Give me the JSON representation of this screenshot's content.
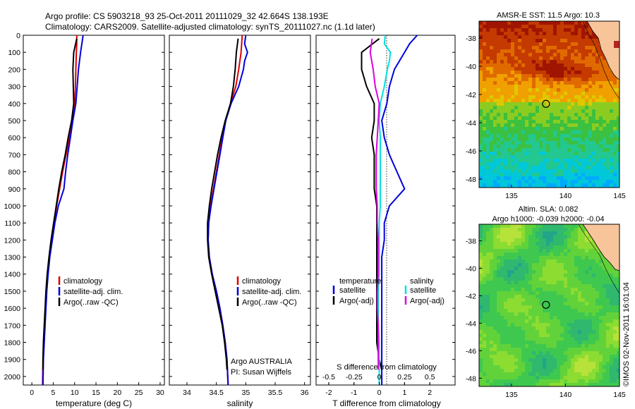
{
  "header": {
    "line1": "Argo profile: CS 5903218_93 25-Oct-2011 20111029_32 42.664S 138.193E",
    "line2": "Climatology: CARS2009. Satellite-adjusted climatology: synTS_20111027.nc (1.1d later)"
  },
  "colors": {
    "climatology": "#e00000",
    "satellite": "#0000dd",
    "argo": "#000000",
    "salinity_satellite": "#00e0e0",
    "salinity_argo": "#e000e0"
  },
  "panel_temperature": {
    "xlabel": "temperature (deg C)",
    "legend": [
      "climatology",
      "satellite-adj. clim.",
      "Argo(..raw -QC)"
    ]
  },
  "panel_salinity": {
    "xlabel": "salinity",
    "legend": [
      "climatology",
      "satellite-adj. clim.",
      "Argo(..raw -QC)"
    ],
    "note1": "Argo AUSTRALIA",
    "note2": "PI: Susan Wijffels"
  },
  "panel_difference": {
    "xlabel": "T difference from climatology",
    "top_label": "S difference from climatology",
    "legend_col1_title": "temperature",
    "legend_col2_title": "salinity",
    "legend_col1": [
      "satellite",
      "Argo(-adj)"
    ],
    "legend_col2": [
      "satellite",
      "Argo(-adj)"
    ]
  },
  "map_sst": {
    "title": "AMSR-E SST: 11.5 Argo: 10.3"
  },
  "map_sla": {
    "title1": "Altim. SLA: 0.082",
    "title2": "Argo h1000: -0.039 h2000: -0.04"
  },
  "credit": "©IMOS 02-Nov-2011 16:01:04",
  "chart_data": [
    {
      "type": "line",
      "name": "temperature",
      "xlabel": "temperature (deg C)",
      "ylabel": "",
      "xlim": [
        -2,
        31
      ],
      "ylim": [
        2050,
        0
      ],
      "xticks": [
        0,
        5,
        10,
        15,
        20,
        25,
        30
      ],
      "yticks": [
        0,
        100,
        200,
        300,
        400,
        500,
        600,
        700,
        800,
        900,
        1000,
        1100,
        1200,
        1300,
        1400,
        1500,
        1600,
        1700,
        1800,
        1900,
        2000
      ],
      "legend_position": "lower-center",
      "series": [
        {
          "name": "climatology",
          "color": "#e00000",
          "points": [
            [
              10.5,
              0
            ],
            [
              10.5,
              50
            ],
            [
              10.4,
              100
            ],
            [
              10.3,
              200
            ],
            [
              10.2,
              300
            ],
            [
              10.0,
              400
            ],
            [
              9.5,
              500
            ],
            [
              8.8,
              600
            ],
            [
              8.0,
              700
            ],
            [
              7.2,
              800
            ],
            [
              6.5,
              900
            ],
            [
              5.8,
              1000
            ],
            [
              5.2,
              1100
            ],
            [
              4.6,
              1200
            ],
            [
              4.1,
              1300
            ],
            [
              3.7,
              1400
            ],
            [
              3.4,
              1500
            ],
            [
              3.2,
              1600
            ],
            [
              3.0,
              1700
            ],
            [
              2.8,
              1800
            ],
            [
              2.6,
              1900
            ],
            [
              2.5,
              2050
            ]
          ]
        },
        {
          "name": "satellite-adj. clim.",
          "color": "#0000dd",
          "points": [
            [
              12.0,
              0
            ],
            [
              11.7,
              50
            ],
            [
              11.4,
              100
            ],
            [
              10.9,
              200
            ],
            [
              10.6,
              300
            ],
            [
              10.3,
              400
            ],
            [
              9.6,
              500
            ],
            [
              9.0,
              600
            ],
            [
              8.4,
              700
            ],
            [
              7.9,
              800
            ],
            [
              7.5,
              900
            ],
            [
              6.2,
              1000
            ],
            [
              5.4,
              1100
            ],
            [
              4.8,
              1200
            ],
            [
              4.2,
              1300
            ],
            [
              3.8,
              1400
            ],
            [
              3.5,
              1500
            ],
            [
              3.3,
              1600
            ],
            [
              3.1,
              1700
            ],
            [
              2.9,
              1800
            ],
            [
              2.7,
              1900
            ],
            [
              2.6,
              2050
            ]
          ]
        },
        {
          "name": "Argo(..raw -QC)",
          "color": "#000000",
          "points": [
            [
              10.5,
              20
            ],
            [
              9.8,
              100
            ],
            [
              9.6,
              200
            ],
            [
              9.7,
              300
            ],
            [
              9.8,
              400
            ],
            [
              9.3,
              500
            ],
            [
              8.5,
              600
            ],
            [
              7.8,
              700
            ],
            [
              7.0,
              800
            ],
            [
              6.3,
              900
            ],
            [
              5.7,
              1000
            ],
            [
              5.1,
              1100
            ],
            [
              4.5,
              1200
            ],
            [
              4.0,
              1300
            ],
            [
              3.6,
              1400
            ],
            [
              3.3,
              1500
            ],
            [
              3.1,
              1600
            ],
            [
              2.9,
              1700
            ],
            [
              2.7,
              1800
            ],
            [
              2.6,
              1900
            ],
            [
              2.6,
              1960
            ]
          ]
        }
      ]
    },
    {
      "type": "line",
      "name": "salinity",
      "xlabel": "salinity",
      "ylabel": "",
      "xlim": [
        33.7,
        36.1
      ],
      "ylim": [
        2050,
        0
      ],
      "xticks": [
        34,
        34.5,
        35,
        35.5,
        36
      ],
      "legend_position": "lower-right",
      "series": [
        {
          "name": "climatology",
          "color": "#e00000",
          "points": [
            [
              34.94,
              0
            ],
            [
              34.93,
              50
            ],
            [
              34.92,
              100
            ],
            [
              34.88,
              200
            ],
            [
              34.83,
              300
            ],
            [
              34.74,
              400
            ],
            [
              34.66,
              500
            ],
            [
              34.6,
              600
            ],
            [
              34.55,
              700
            ],
            [
              34.5,
              800
            ],
            [
              34.45,
              900
            ],
            [
              34.4,
              1000
            ],
            [
              34.37,
              1100
            ],
            [
              34.36,
              1200
            ],
            [
              34.38,
              1300
            ],
            [
              34.43,
              1400
            ],
            [
              34.5,
              1500
            ],
            [
              34.56,
              1600
            ],
            [
              34.61,
              1700
            ],
            [
              34.65,
              1800
            ],
            [
              34.68,
              1900
            ],
            [
              34.7,
              2050
            ]
          ]
        },
        {
          "name": "satellite-adj. clim.",
          "color": "#0000dd",
          "points": [
            [
              35.0,
              0
            ],
            [
              34.98,
              50
            ],
            [
              35.03,
              100
            ],
            [
              34.98,
              150
            ],
            [
              34.96,
              200
            ],
            [
              34.88,
              300
            ],
            [
              34.75,
              400
            ],
            [
              34.66,
              500
            ],
            [
              34.61,
              600
            ],
            [
              34.56,
              700
            ],
            [
              34.51,
              800
            ],
            [
              34.46,
              900
            ],
            [
              34.41,
              1000
            ],
            [
              34.37,
              1100
            ],
            [
              34.36,
              1200
            ],
            [
              34.38,
              1300
            ],
            [
              34.43,
              1400
            ],
            [
              34.5,
              1500
            ],
            [
              34.56,
              1600
            ],
            [
              34.61,
              1700
            ],
            [
              34.65,
              1800
            ],
            [
              34.68,
              1900
            ],
            [
              34.7,
              2050
            ]
          ]
        },
        {
          "name": "Argo(..raw -QC)",
          "color": "#000000",
          "points": [
            [
              34.87,
              20
            ],
            [
              34.84,
              100
            ],
            [
              34.82,
              200
            ],
            [
              34.79,
              300
            ],
            [
              34.74,
              400
            ],
            [
              34.65,
              500
            ],
            [
              34.58,
              600
            ],
            [
              34.52,
              700
            ],
            [
              34.47,
              800
            ],
            [
              34.42,
              900
            ],
            [
              34.38,
              1000
            ],
            [
              34.35,
              1100
            ],
            [
              34.35,
              1200
            ],
            [
              34.37,
              1300
            ],
            [
              34.42,
              1400
            ],
            [
              34.48,
              1500
            ],
            [
              34.54,
              1600
            ],
            [
              34.6,
              1700
            ],
            [
              34.64,
              1800
            ],
            [
              34.67,
              1900
            ],
            [
              34.68,
              1960
            ]
          ]
        }
      ]
    },
    {
      "type": "line",
      "name": "difference",
      "xlabel": "T difference from climatology",
      "x2label": "S difference from climatology",
      "xlim": [
        -2.5,
        3.0
      ],
      "x2lim": [
        -0.625,
        0.75
      ],
      "ylim": [
        2050,
        0
      ],
      "xticks": [
        -2,
        -1,
        0,
        1,
        2
      ],
      "x2ticks": [
        -0.5,
        -0.25,
        0,
        0.25,
        0.5
      ],
      "legend_position": "lower-center",
      "series": [
        {
          "name": "temperature satellite",
          "color": "#0000dd",
          "points": [
            [
              1.5,
              0
            ],
            [
              1.2,
              50
            ],
            [
              1.0,
              100
            ],
            [
              0.6,
              200
            ],
            [
              0.4,
              300
            ],
            [
              0.3,
              400
            ],
            [
              0.1,
              500
            ],
            [
              0.2,
              600
            ],
            [
              0.4,
              700
            ],
            [
              0.7,
              800
            ],
            [
              1.0,
              900
            ],
            [
              0.4,
              1000
            ],
            [
              0.2,
              1100
            ],
            [
              0.2,
              1200
            ],
            [
              0.1,
              1300
            ],
            [
              0.1,
              1400
            ],
            [
              0.1,
              1500
            ],
            [
              0.1,
              1600
            ],
            [
              0.1,
              1700
            ],
            [
              0.1,
              1800
            ],
            [
              0.1,
              1900
            ],
            [
              0.1,
              2050
            ]
          ]
        },
        {
          "name": "temperature Argo(-adj)",
          "color": "#000000",
          "points": [
            [
              0,
              20
            ],
            [
              -0.7,
              100
            ],
            [
              -0.7,
              200
            ],
            [
              -0.5,
              300
            ],
            [
              -0.2,
              400
            ],
            [
              -0.2,
              500
            ],
            [
              -0.3,
              600
            ],
            [
              -0.2,
              700
            ],
            [
              -0.2,
              800
            ],
            [
              -0.2,
              900
            ],
            [
              -0.1,
              1000
            ],
            [
              -0.1,
              1100
            ],
            [
              -0.1,
              1200
            ],
            [
              -0.1,
              1300
            ],
            [
              -0.1,
              1400
            ],
            [
              -0.1,
              1500
            ],
            [
              -0.1,
              1600
            ],
            [
              -0.1,
              1700
            ],
            [
              -0.1,
              1800
            ],
            [
              0.0,
              1900
            ],
            [
              0.1,
              1960
            ]
          ]
        },
        {
          "name": "salinity satellite",
          "color": "#00e0e0",
          "points": [
            [
              0.06,
              0
            ],
            [
              0.05,
              50
            ],
            [
              0.11,
              100
            ],
            [
              0.1,
              150
            ],
            [
              0.08,
              200
            ],
            [
              0.05,
              300
            ],
            [
              0.01,
              400
            ],
            [
              0.0,
              500
            ],
            [
              0.01,
              600
            ],
            [
              0.01,
              700
            ],
            [
              0.01,
              800
            ],
            [
              0.01,
              900
            ],
            [
              0.01,
              1000
            ],
            [
              0.0,
              1100
            ],
            [
              0.0,
              1200
            ],
            [
              0.0,
              1300
            ],
            [
              0.0,
              1400
            ],
            [
              -0.01,
              1500
            ],
            [
              -0.01,
              1600
            ],
            [
              -0.01,
              1700
            ],
            [
              0.0,
              1800
            ],
            [
              0.0,
              1900
            ],
            [
              0.0,
              2050
            ]
          ]
        },
        {
          "name": "salinity Argo(-adj)",
          "color": "#e000e0",
          "points": [
            [
              -0.07,
              20
            ],
            [
              -0.09,
              100
            ],
            [
              -0.06,
              200
            ],
            [
              -0.04,
              300
            ],
            [
              0.0,
              400
            ],
            [
              -0.01,
              500
            ],
            [
              -0.02,
              600
            ],
            [
              -0.03,
              700
            ],
            [
              -0.03,
              800
            ],
            [
              -0.03,
              900
            ],
            [
              -0.02,
              1000
            ],
            [
              -0.02,
              1100
            ],
            [
              -0.01,
              1200
            ],
            [
              -0.01,
              1300
            ],
            [
              -0.01,
              1400
            ],
            [
              -0.02,
              1500
            ],
            [
              -0.02,
              1600
            ],
            [
              -0.01,
              1700
            ],
            [
              -0.01,
              1800
            ],
            [
              -0.01,
              1900
            ],
            [
              -0.01,
              1960
            ]
          ]
        }
      ]
    },
    {
      "type": "heatmap",
      "name": "sst-map",
      "title": "AMSR-E SST: 11.5 Argo: 10.3",
      "xlim": [
        132,
        145
      ],
      "ylim": [
        -48.6,
        -36.8
      ],
      "xticks": [
        135,
        140,
        145
      ],
      "yticks": [
        -38,
        -40,
        -42,
        -44,
        -46,
        -48
      ],
      "argo_position": [
        138.193,
        -42.664
      ]
    },
    {
      "type": "heatmap",
      "name": "sla-map",
      "title": "Altim. SLA: 0.082",
      "xlim": [
        132,
        145
      ],
      "ylim": [
        -48.6,
        -36.8
      ],
      "xticks": [
        135,
        140,
        145
      ],
      "yticks": [
        -38,
        -40,
        -42,
        -44,
        -46,
        -48
      ],
      "argo_position": [
        138.193,
        -42.664
      ]
    }
  ]
}
